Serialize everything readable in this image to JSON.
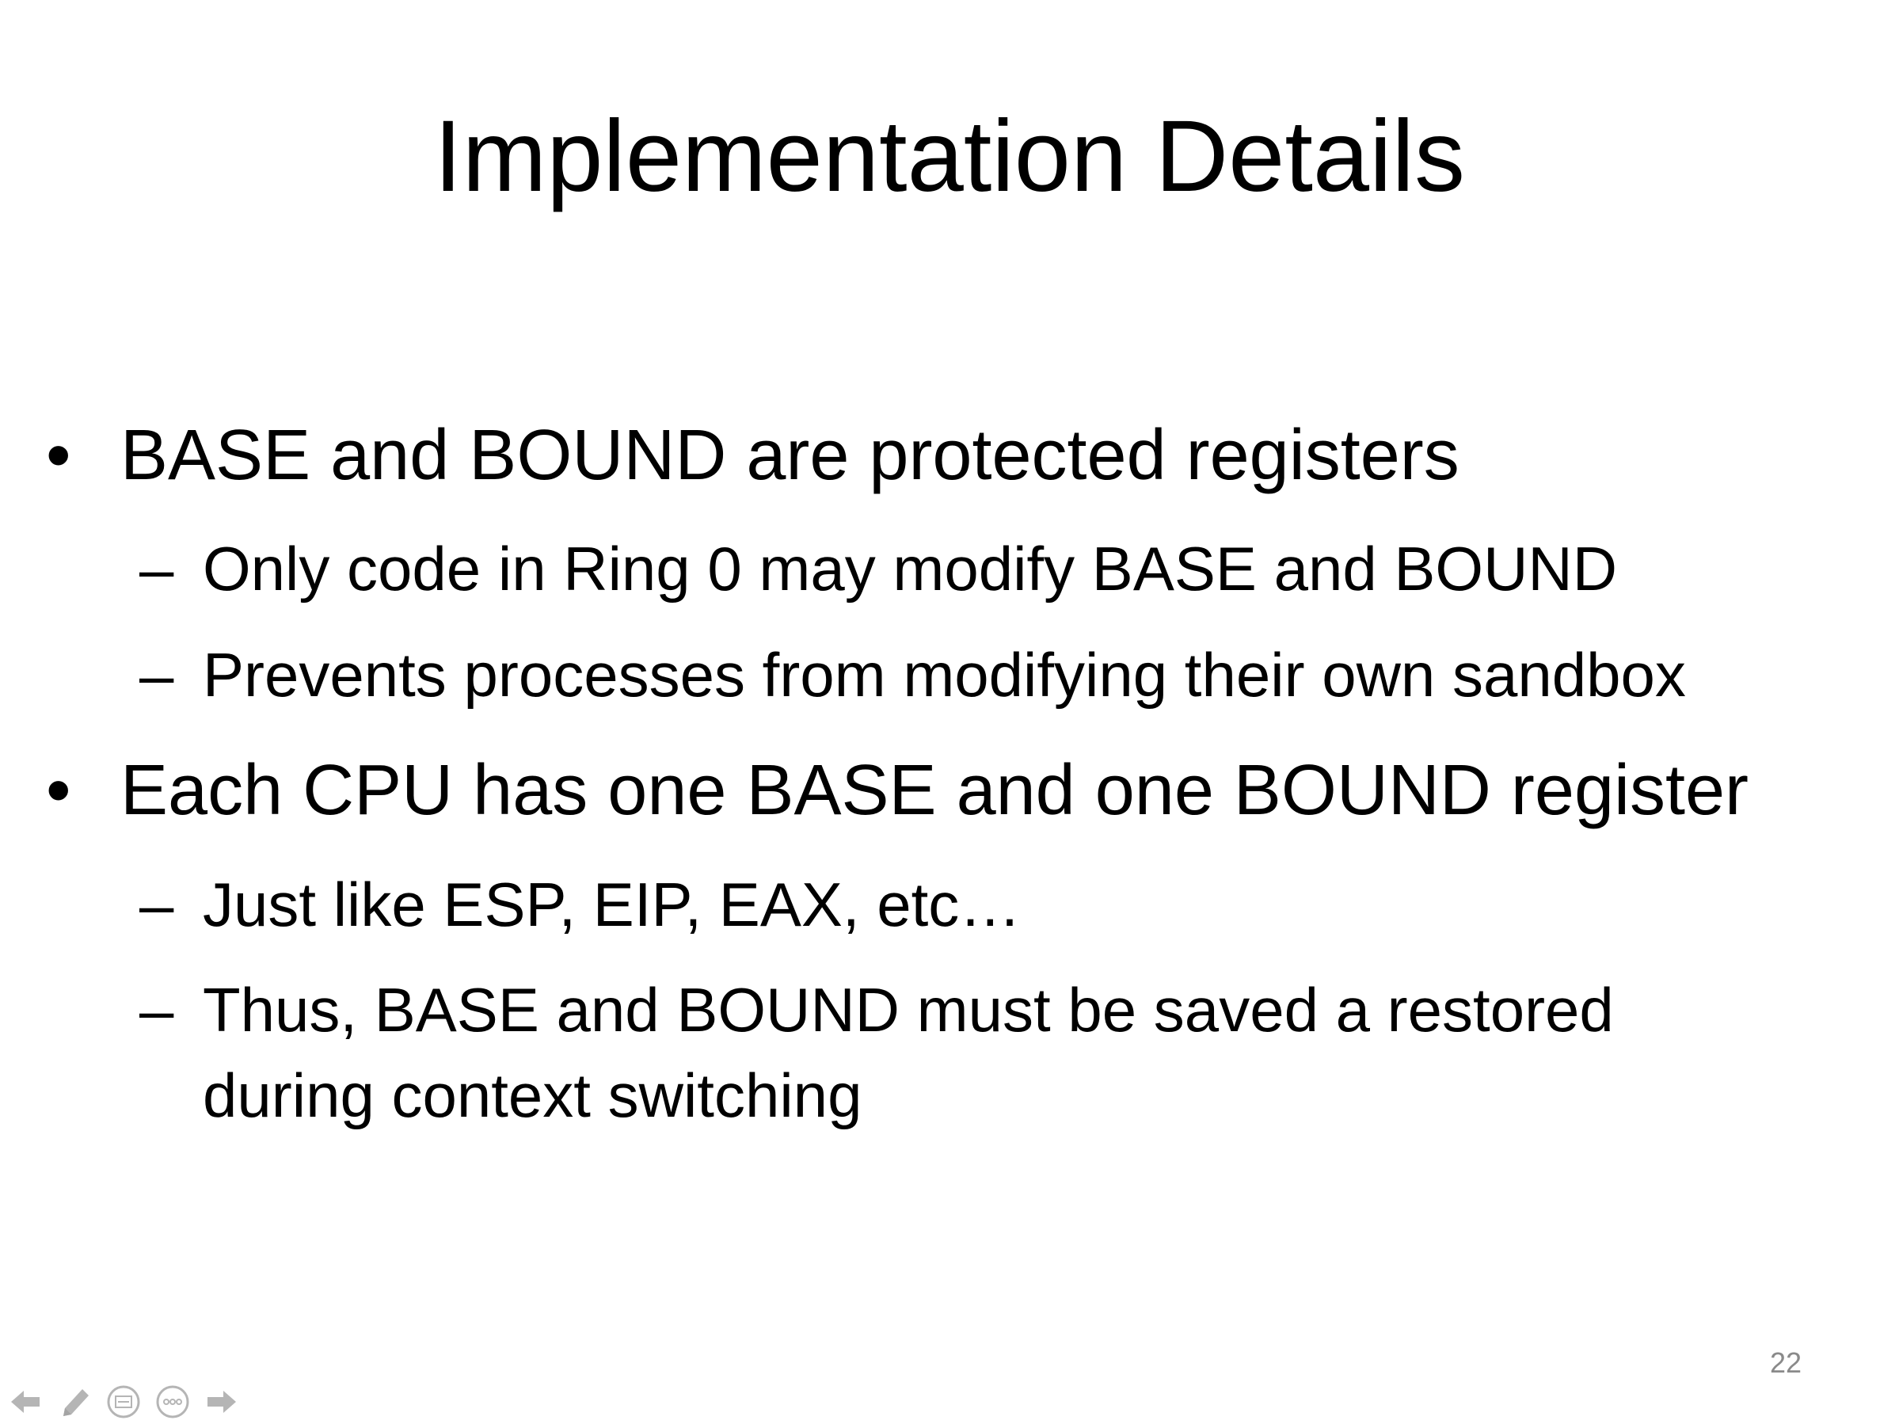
{
  "slide": {
    "title": "Implementation Details",
    "bullets": [
      {
        "symbol": "•",
        "text": "BASE and BOUND are protected registers",
        "sub": [
          {
            "symbol": "–",
            "text": "Only code in Ring 0 may modify BASE and BOUND"
          },
          {
            "symbol": "–",
            "text": "Prevents processes from modifying their own sandbox"
          }
        ]
      },
      {
        "symbol": "•",
        "text": "Each CPU has one BASE and one BOUND register",
        "sub": [
          {
            "symbol": "–",
            "text": "Just like ESP, EIP, EAX, etc…"
          },
          {
            "symbol": "–",
            "text": "Thus, BASE and BOUND must be saved a restored",
            "continuation": "during context switching"
          }
        ]
      }
    ],
    "page_number": "22"
  },
  "toolbar": {
    "icons": {
      "prev": "arrow-left-icon",
      "pen": "pen-icon",
      "slides": "slides-menu-icon",
      "more": "more-options-icon",
      "next": "arrow-right-icon"
    },
    "icon_color": "#7a7a7a"
  }
}
